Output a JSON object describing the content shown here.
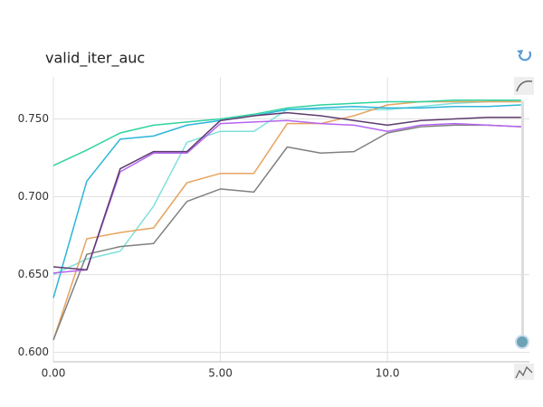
{
  "chart_data": {
    "type": "line",
    "title": "valid_iter_auc",
    "x": [
      0,
      1,
      2,
      3,
      4,
      5,
      6,
      7,
      8,
      9,
      10,
      11,
      12,
      13,
      14
    ],
    "xlim": [
      0,
      14.25
    ],
    "xticks": [
      {
        "value": 0,
        "label": "0.00"
      },
      {
        "value": 5,
        "label": "5.00"
      },
      {
        "value": 10,
        "label": "10.0"
      }
    ],
    "ylim": [
      0.594,
      0.777
    ],
    "yticks": [
      {
        "value": 0.6,
        "label": "0.600"
      },
      {
        "value": 0.65,
        "label": "0.650"
      },
      {
        "value": 0.7,
        "label": "0.700"
      },
      {
        "value": 0.75,
        "label": "0.750"
      }
    ],
    "grid": true,
    "series": [
      {
        "color": "#7fe0dc",
        "values": [
          0.65,
          0.66,
          0.665,
          0.694,
          0.735,
          0.742,
          0.742,
          0.756,
          0.756,
          0.756,
          0.756,
          0.758,
          0.76,
          0.761,
          0.762
        ]
      },
      {
        "color": "#e6a460",
        "values": [
          0.608,
          0.673,
          0.677,
          0.68,
          0.709,
          0.715,
          0.715,
          0.747,
          0.747,
          0.752,
          0.759,
          0.761,
          0.761,
          0.761,
          0.761
        ]
      },
      {
        "color": "#808080",
        "values": [
          0.608,
          0.663,
          0.668,
          0.67,
          0.697,
          0.705,
          0.703,
          0.732,
          0.728,
          0.729,
          0.741,
          0.745,
          0.746,
          0.746,
          0.745
        ]
      },
      {
        "color": "#2bb5d8",
        "values": [
          0.635,
          0.71,
          0.737,
          0.739,
          0.746,
          0.749,
          0.752,
          0.756,
          0.757,
          0.758,
          0.757,
          0.757,
          0.758,
          0.758,
          0.759
        ]
      },
      {
        "color": "#b565f0",
        "values": [
          0.651,
          0.653,
          0.716,
          0.728,
          0.728,
          0.747,
          0.748,
          0.749,
          0.747,
          0.746,
          0.742,
          0.746,
          0.747,
          0.746,
          0.745
        ]
      },
      {
        "color": "#5e3c6e",
        "values": [
          0.655,
          0.653,
          0.718,
          0.729,
          0.729,
          0.749,
          0.752,
          0.754,
          0.752,
          0.749,
          0.746,
          0.749,
          0.75,
          0.751,
          0.751
        ]
      },
      {
        "color": "#2ed3a0",
        "values": [
          0.72,
          0.73,
          0.741,
          0.746,
          0.748,
          0.75,
          0.753,
          0.757,
          0.759,
          0.76,
          0.761,
          0.761,
          0.762,
          0.762,
          0.762
        ]
      }
    ]
  }
}
